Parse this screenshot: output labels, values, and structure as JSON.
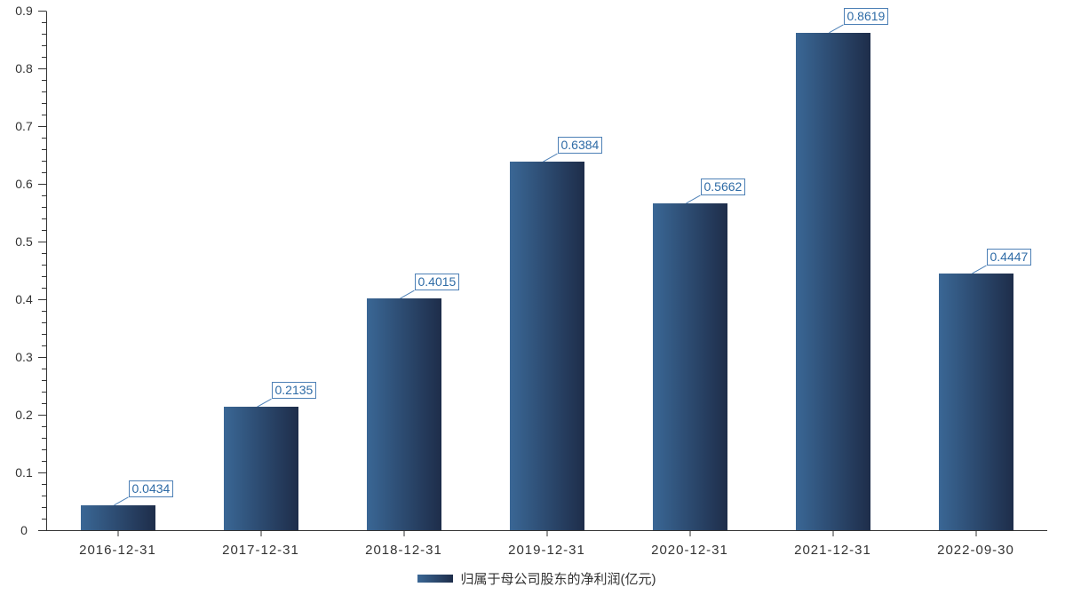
{
  "chart_data": {
    "type": "bar",
    "title": "",
    "xlabel": "",
    "ylabel": "",
    "categories": [
      "2016-12-31",
      "2017-12-31",
      "2018-12-31",
      "2019-12-31",
      "2020-12-31",
      "2021-12-31",
      "2022-09-30"
    ],
    "series": [
      {
        "name": "归属于母公司股东的净利润(亿元)",
        "values": [
          0.0434,
          0.2135,
          0.4015,
          0.6384,
          0.5662,
          0.8619,
          0.4447
        ]
      }
    ],
    "data_labels": [
      "0.0434",
      "0.2135",
      "0.4015",
      "0.6384",
      "0.5662",
      "0.8619",
      "0.4447"
    ],
    "ylim": [
      0,
      0.9
    ],
    "y_major_step": 0.1,
    "y_minor_step": 0.02,
    "y_tick_labels": [
      "0",
      "0.1",
      "0.2",
      "0.3",
      "0.4",
      "0.5",
      "0.6",
      "0.7",
      "0.8",
      "0.9"
    ],
    "grid": false,
    "legend": {
      "position": "bottom",
      "label": "归属于母公司股东的净利润(亿元)"
    },
    "colors": {
      "bar_gradient_start": "#3a6795",
      "bar_gradient_end": "#1e2d4a",
      "axis": "#333333",
      "tick_label": "#333333",
      "data_label_text": "#2e6ba6",
      "data_label_border": "#4d80b6",
      "leader_line": "#4d80b6",
      "background": "#ffffff"
    }
  }
}
